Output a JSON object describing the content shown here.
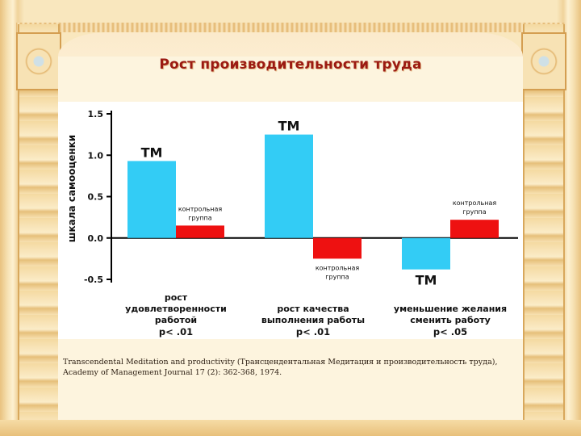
{
  "slide": {
    "title": "Рост производительности труда",
    "citation": "Transcendental Meditation and productivity (Трансцендентальная Медитация и производительность труда), Academy of Management Journal 17 (2): 362-368, 1974."
  },
  "colors": {
    "tm": "#33ccf5",
    "control": "#ee1111",
    "title": "#9b1a12",
    "background": "#f6dca6"
  },
  "chart_data": {
    "type": "bar",
    "ylabel": "шкала самооценки",
    "ylim": [
      -0.5,
      1.5
    ],
    "yticks": [
      "1.5",
      "1.0",
      "0.5",
      "0.0",
      "-0.5"
    ],
    "grid": false,
    "categories": [
      {
        "lines": [
          "рост",
          "удовлетворенности",
          "работой"
        ],
        "p": "p< .01"
      },
      {
        "lines": [
          "рост качества",
          "выполнения работы"
        ],
        "p": "p< .01"
      },
      {
        "lines": [
          "уменьшение желания",
          "сменить работу"
        ],
        "p": "p< .05"
      }
    ],
    "series": [
      {
        "name": "ТМ",
        "values": [
          0.93,
          1.25,
          -0.38
        ],
        "labels": [
          "ТМ",
          "ТМ",
          "ТМ"
        ]
      },
      {
        "name": "контрольная группа",
        "values": [
          0.15,
          -0.25,
          0.22
        ],
        "labels": [
          [
            "контрольная",
            "группа"
          ],
          [
            "контрольная",
            "группа"
          ],
          [
            "контрольная",
            "группа"
          ]
        ]
      }
    ]
  }
}
